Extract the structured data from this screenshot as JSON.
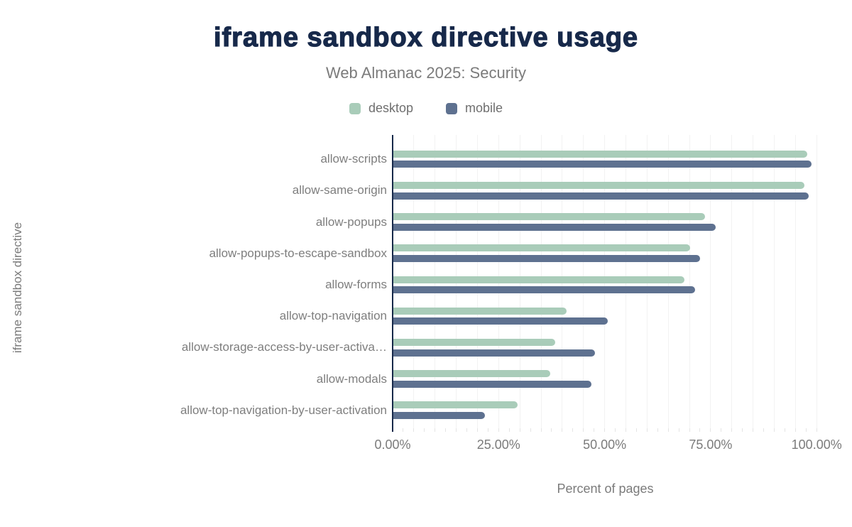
{
  "header": {
    "title": "iframe sandbox directive usage",
    "subtitle": "Web Almanac 2025: Security"
  },
  "legend": [
    {
      "name": "desktop",
      "color": "#a9ccb9"
    },
    {
      "name": "mobile",
      "color": "#5e7190"
    }
  ],
  "chart_data": {
    "type": "bar",
    "orientation": "horizontal",
    "title": "iframe sandbox directive usage",
    "subtitle": "Web Almanac 2025: Security",
    "xlabel": "Percent of pages",
    "ylabel": "iframe sandbox directive",
    "xlim": [
      0,
      100
    ],
    "grid": "vertical",
    "gridline_step": 5,
    "minor_tick_step": 2.5,
    "legend_position": "top",
    "categories": [
      "allow-scripts",
      "allow-same-origin",
      "allow-popups",
      "allow-popups-to-escape-sandbox",
      "allow-forms",
      "allow-top-navigation",
      "allow-storage-access-by-user-activa…",
      "allow-modals",
      "allow-top-navigation-by-user-activation"
    ],
    "series": [
      {
        "name": "desktop",
        "color": "#a9ccb9",
        "values": [
          97.8,
          97.1,
          73.6,
          70.2,
          68.8,
          41.0,
          38.4,
          37.1,
          29.4
        ]
      },
      {
        "name": "mobile",
        "color": "#5e7190",
        "values": [
          98.8,
          98.1,
          76.2,
          72.5,
          71.3,
          50.8,
          47.8,
          46.9,
          21.7
        ]
      }
    ],
    "xticks": [
      {
        "value": 0,
        "label": "0.00%"
      },
      {
        "value": 25,
        "label": "25.00%"
      },
      {
        "value": 50,
        "label": "50.00%"
      },
      {
        "value": 75,
        "label": "75.00%"
      },
      {
        "value": 100,
        "label": "100.00%"
      }
    ]
  },
  "colors": {
    "title": "#17294a",
    "axis_line": "#17294a",
    "text_gray": "#7b7b7b",
    "gridline": "#f2f2f2",
    "desktop": "#a9ccb9",
    "mobile": "#5e7190"
  }
}
